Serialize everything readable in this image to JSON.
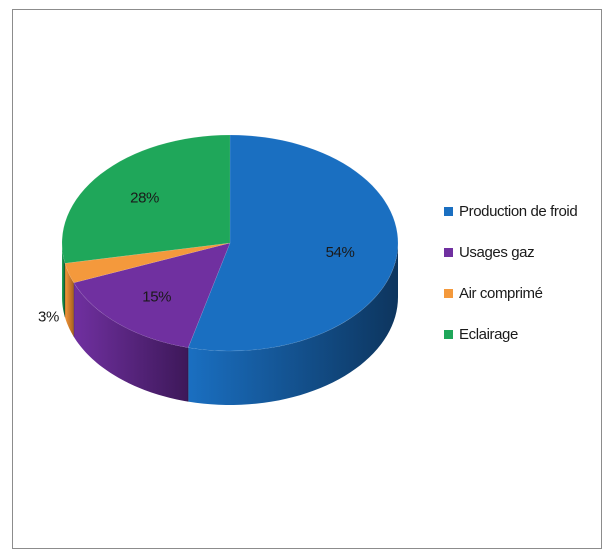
{
  "chart_data": {
    "type": "pie",
    "style": "3d",
    "title": "",
    "legend_position": "right",
    "slices": [
      {
        "label": "Production de froid",
        "value": 54,
        "display": "54%",
        "color": "#1a6fc1",
        "dark": "#0d355e"
      },
      {
        "label": "Usages gaz",
        "value": 15,
        "display": "15%",
        "color": "#7030a0",
        "dark": "#3d1859"
      },
      {
        "label": "Air comprimé",
        "value": 3,
        "display": "3%",
        "color": "#f4993c",
        "dark": "#a8601c"
      },
      {
        "label": "Eclairage",
        "value": 28,
        "display": "28%",
        "color": "#1fa75a",
        "dark": "#0f5e31"
      }
    ]
  }
}
